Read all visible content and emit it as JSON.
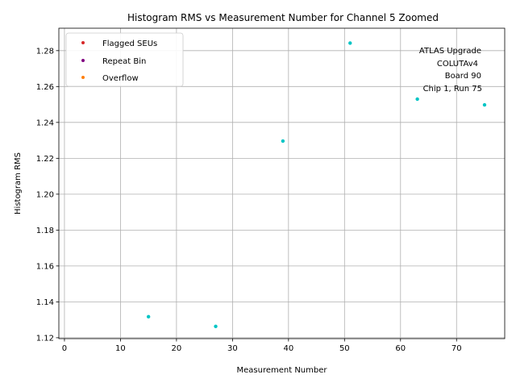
{
  "chart_data": {
    "type": "scatter",
    "title": "Histogram RMS vs Measurement Number for Channel 5 Zoomed",
    "xlabel": "Measurement Number",
    "ylabel": "Histogram RMS",
    "xlim": [
      -1,
      78.6
    ],
    "ylim": [
      1.1195,
      1.2925
    ],
    "xticks": [
      0,
      10,
      20,
      30,
      40,
      50,
      60,
      70
    ],
    "xtick_labels": [
      "0",
      "10",
      "20",
      "30",
      "40",
      "50",
      "60",
      "70"
    ],
    "yticks": [
      1.12,
      1.14,
      1.16,
      1.18,
      1.2,
      1.22,
      1.24,
      1.26,
      1.28
    ],
    "ytick_labels": [
      "1.12",
      "1.14",
      "1.16",
      "1.18",
      "1.20",
      "1.22",
      "1.24",
      "1.26",
      "1.28"
    ],
    "grid": true,
    "legend_position": "top-left",
    "legend": [
      {
        "label": "Flagged SEUs",
        "color": "#d62728"
      },
      {
        "label": "Repeat Bin",
        "color": "#800080"
      },
      {
        "label": "Overflow",
        "color": "#ff7f0e"
      }
    ],
    "series": [
      {
        "color": "#00c5c5",
        "x": [
          15,
          27,
          39,
          51,
          63,
          75
        ],
        "y": [
          1.1317,
          1.1263,
          1.2296,
          1.2842,
          1.253,
          1.2498
        ]
      }
    ],
    "annotation": [
      "ATLAS Upgrade",
      "COLUTAv4",
      "Board 90",
      "Chip 1, Run 75"
    ]
  }
}
